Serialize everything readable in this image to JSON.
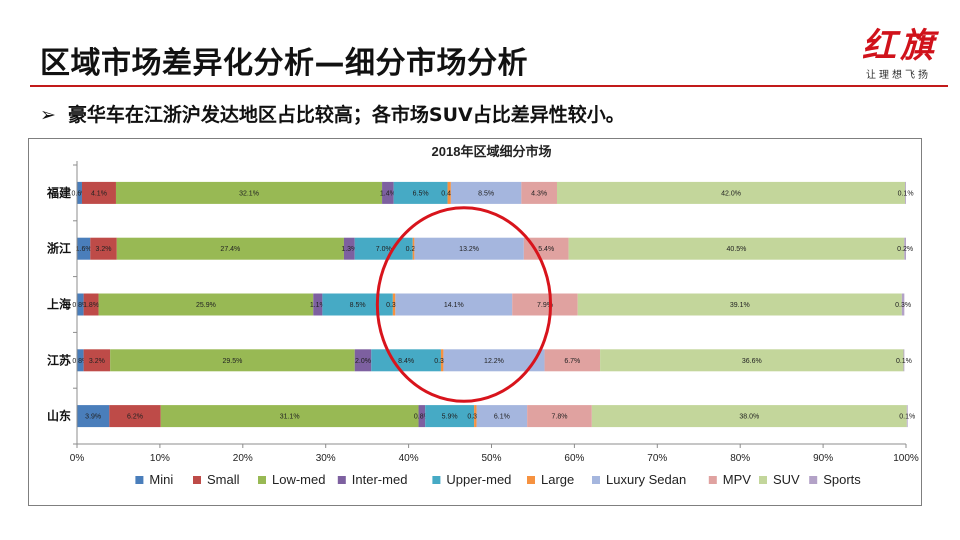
{
  "slide": {
    "title": "区域市场差异化分析—细分市场分析",
    "bullet_marker": "➢",
    "bullet": "豪华车在江浙沪发达地区占比较高；各市场SUV占比差异性较小。",
    "logo_text": "红旗",
    "logo_sub": "让理想飞扬"
  },
  "colors": {
    "title_rule": "#c21a1a",
    "highlight_ellipse": "#d8141c",
    "logo": "#d0121b"
  },
  "chart_data": {
    "type": "bar",
    "orientation": "horizontal",
    "stacked": "percent",
    "title": "2018年区域细分市场",
    "categories": [
      "福建",
      "浙江",
      "上海",
      "江苏",
      "山东"
    ],
    "xlim": [
      0,
      100
    ],
    "x_ticks": [
      "0%",
      "10%",
      "20%",
      "30%",
      "40%",
      "50%",
      "60%",
      "70%",
      "80%",
      "90%",
      "100%"
    ],
    "legend_position": "bottom",
    "grid": false,
    "series": [
      {
        "name": "Mini",
        "color": "#4a7ebb",
        "values": [
          0.6,
          1.6,
          0.8,
          0.8,
          3.9
        ],
        "labels": [
          "0.6%",
          "1.6%",
          "0.8%",
          "0.8%",
          "3.9%"
        ]
      },
      {
        "name": "Small",
        "color": "#be4b48",
        "values": [
          4.1,
          3.2,
          1.8,
          3.2,
          6.2
        ],
        "labels": [
          "4.1%",
          "3.2%",
          "1.8%",
          "3.2%",
          "6.2%"
        ]
      },
      {
        "name": "Low-med",
        "color": "#98b954",
        "values": [
          32.1,
          27.4,
          25.9,
          29.5,
          31.1
        ],
        "labels": [
          "32.1%",
          "27.4%",
          "25.9%",
          "29.5%",
          "31.1%"
        ]
      },
      {
        "name": "Inter-med",
        "color": "#7d60a0",
        "values": [
          1.4,
          1.3,
          1.1,
          2.0,
          0.8
        ],
        "labels": [
          "1.4%",
          "1.3%",
          "1.1%",
          "2.0%",
          "0.8%"
        ]
      },
      {
        "name": "Upper-med",
        "color": "#46aac5",
        "values": [
          6.5,
          7.0,
          8.5,
          8.4,
          5.9
        ],
        "labels": [
          "6.5%",
          "7.0%",
          "8.5%",
          "8.4%",
          "5.9%"
        ]
      },
      {
        "name": "Large",
        "color": "#f69240",
        "values": [
          0.4,
          0.2,
          0.3,
          0.3,
          0.3
        ],
        "labels": [
          "0.4%",
          "0.2%",
          "0.3%",
          "0.3%",
          "0.3%"
        ]
      },
      {
        "name": "Luxury Sedan",
        "color": "#a5b6de",
        "values": [
          8.5,
          13.2,
          14.1,
          12.2,
          6.1
        ],
        "labels": [
          "8.5%",
          "13.2%",
          "14.1%",
          "12.2%",
          "6.1%"
        ]
      },
      {
        "name": "MPV",
        "color": "#e0a2a0",
        "values": [
          4.3,
          5.4,
          7.9,
          6.7,
          7.8
        ],
        "labels": [
          "4.3%",
          "5.4%",
          "7.9%",
          "6.7%",
          "7.8%"
        ]
      },
      {
        "name": "SUV",
        "color": "#c3d69b",
        "values": [
          42.0,
          40.5,
          39.1,
          36.6,
          38.0
        ],
        "labels": [
          "42.0%",
          "40.5%",
          "39.1%",
          "36.6%",
          "38.0%"
        ]
      },
      {
        "name": "Sports",
        "color": "#b3a2c7",
        "values": [
          0.1,
          0.2,
          0.3,
          0.1,
          0.1
        ],
        "labels": [
          "0.1%",
          "0.2%",
          "0.3%",
          "0.1%",
          "0.1%"
        ]
      }
    ],
    "annotation": {
      "shape": "ellipse",
      "highlights_series": "Luxury Sedan",
      "categories": [
        "浙江",
        "上海",
        "江苏"
      ]
    }
  }
}
